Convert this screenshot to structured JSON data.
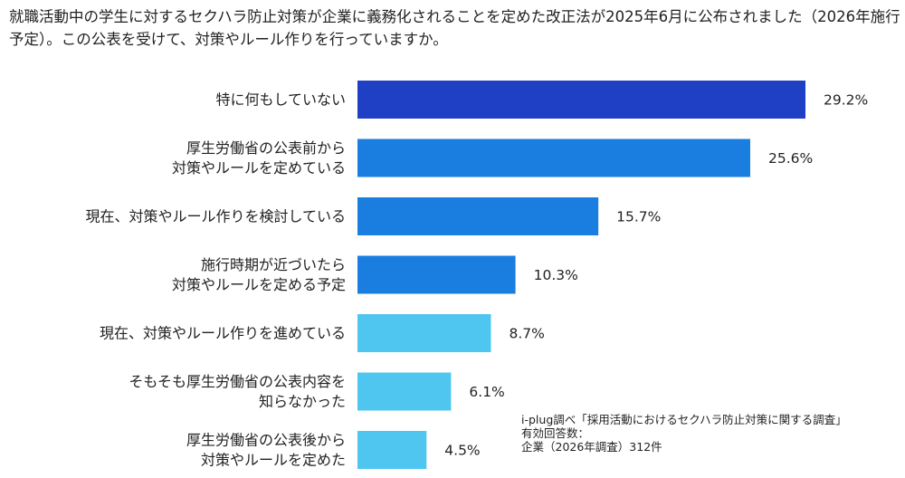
{
  "title": "就職活動中の学生に対するセクハラ防止対策が企業に義務化されることを定めた改正法が2025年6月に公布されました（2026年施行予定）。この公表を受けて、対策やルール作りを行っていますか。",
  "chart_data": {
    "type": "bar",
    "orientation": "horizontal",
    "title": "就職活動中の学生に対するセクハラ防止対策が企業に義務化されることを定めた改正法が2025年6月に公布されました（2026年施行予定）。この公表を受けて、対策やルール作りを行っていますか。",
    "categories": [
      [
        "特に何もしていない"
      ],
      [
        "厚生労働省の公表前から",
        "対策やルールを定めている"
      ],
      [
        "現在、対策やルール作りを検討している"
      ],
      [
        "施行時期が近づいたら",
        "対策やルールを定める予定"
      ],
      [
        "現在、対策やルール作りを進めている"
      ],
      [
        "そもそも厚生労働省の公表内容を",
        "知らなかった"
      ],
      [
        "厚生労働省の公表後から",
        "対策やルールを定めた"
      ]
    ],
    "values": [
      29.2,
      25.6,
      15.7,
      10.3,
      8.7,
      6.1,
      4.5
    ],
    "value_labels": [
      "29.2%",
      "25.6%",
      "15.7%",
      "10.3%",
      "8.7%",
      "6.1%",
      "4.5%"
    ],
    "colors": [
      "#1f3fc4",
      "#1a7ee0",
      "#1a7ee0",
      "#1a7ee0",
      "#4fc6ef",
      "#4fc6ef",
      "#4fc6ef"
    ],
    "unit": "%",
    "xlim": [
      0,
      29.2
    ],
    "grid": false,
    "legend": "none"
  },
  "source": {
    "line1": "i-plug調べ「採用活動におけるセクハラ防止対策に関する調査」",
    "line2": "有効回答数：",
    "line3": "企業（2026年調査）312件"
  }
}
